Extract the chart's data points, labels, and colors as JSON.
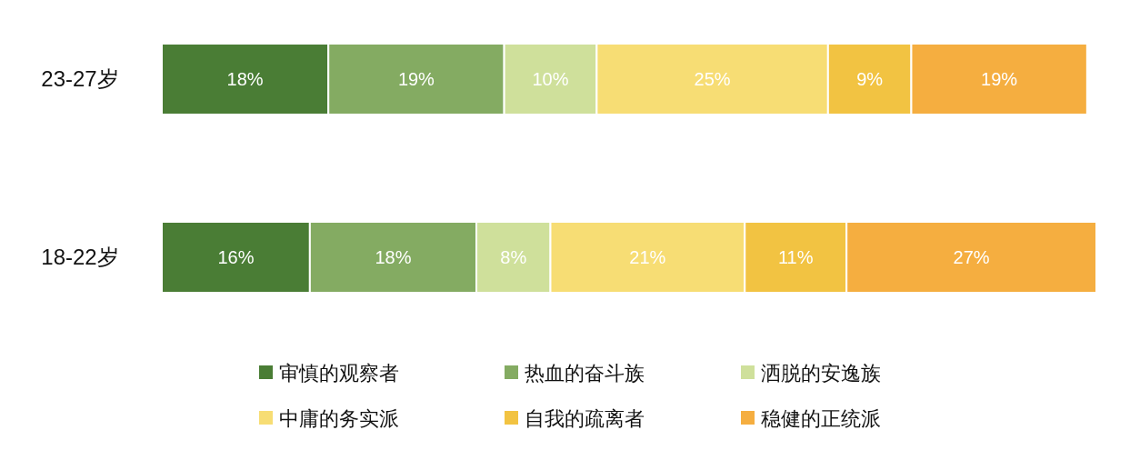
{
  "chart_data": {
    "type": "bar",
    "orientation": "horizontal",
    "stacked": true,
    "legend": "bottom",
    "grid": false,
    "categories": [
      "23-27岁",
      "18-22岁"
    ],
    "series": [
      {
        "name": "审慎的观察者",
        "color": "#4a7d35",
        "values": [
          18,
          16
        ],
        "value_labels": [
          "18%",
          "16%"
        ]
      },
      {
        "name": "热血的奋斗族",
        "color": "#84ab62",
        "values": [
          19,
          18
        ],
        "value_labels": [
          "19%",
          "18%"
        ]
      },
      {
        "name": "洒脱的安逸族",
        "color": "#cfe09b",
        "values": [
          10,
          8
        ],
        "value_labels": [
          "10%",
          "8%"
        ]
      },
      {
        "name": "中庸的务实派",
        "color": "#f7dd74",
        "values": [
          25,
          21
        ],
        "value_labels": [
          "25%",
          "21%"
        ]
      },
      {
        "name": "自我的疏离者",
        "color": "#f2c342",
        "values": [
          9,
          11
        ],
        "value_labels": [
          "9%",
          "11%"
        ]
      },
      {
        "name": "稳健的正统派",
        "color": "#f5ae40",
        "values": [
          19,
          27
        ],
        "value_labels": [
          "19%",
          "27%"
        ]
      }
    ]
  }
}
